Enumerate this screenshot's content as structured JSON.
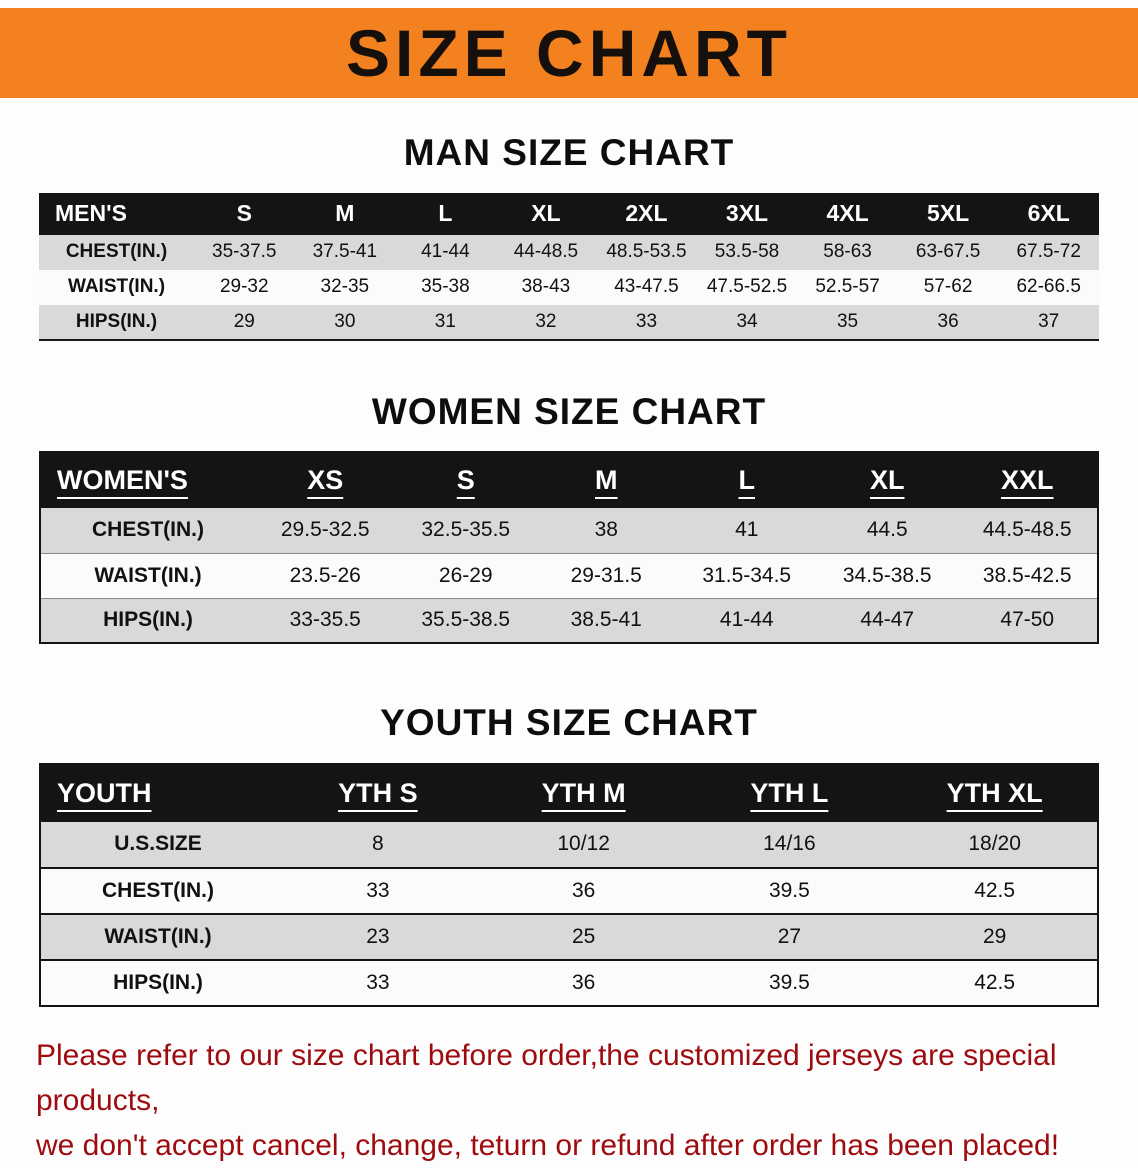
{
  "banner": {
    "title": "SIZE CHART"
  },
  "men": {
    "heading": "MAN SIZE CHART",
    "columns": [
      "MEN'S",
      "S",
      "M",
      "L",
      "XL",
      "2XL",
      "3XL",
      "4XL",
      "5XL",
      "6XL"
    ],
    "rows": [
      {
        "label": "CHEST(IN.)",
        "values": [
          "35-37.5",
          "37.5-41",
          "41-44",
          "44-48.5",
          "48.5-53.5",
          "53.5-58",
          "58-63",
          "63-67.5",
          "67.5-72"
        ]
      },
      {
        "label": "WAIST(IN.)",
        "values": [
          "29-32",
          "32-35",
          "35-38",
          "38-43",
          "43-47.5",
          "47.5-52.5",
          "52.5-57",
          "57-62",
          "62-66.5"
        ]
      },
      {
        "label": "HIPS(IN.)",
        "values": [
          "29",
          "30",
          "31",
          "32",
          "33",
          "34",
          "35",
          "36",
          "37"
        ]
      }
    ]
  },
  "women": {
    "heading": "WOMEN SIZE CHART",
    "columns": [
      "WOMEN'S",
      "XS",
      "S",
      "M",
      "L",
      "XL",
      "XXL"
    ],
    "rows": [
      {
        "label": "CHEST(IN.)",
        "values": [
          "29.5-32.5",
          "32.5-35.5",
          "38",
          "41",
          "44.5",
          "44.5-48.5"
        ]
      },
      {
        "label": "WAIST(IN.)",
        "values": [
          "23.5-26",
          "26-29",
          "29-31.5",
          "31.5-34.5",
          "34.5-38.5",
          "38.5-42.5"
        ]
      },
      {
        "label": "HIPS(IN.)",
        "values": [
          "33-35.5",
          "35.5-38.5",
          "38.5-41",
          "41-44",
          "44-47",
          "47-50"
        ]
      }
    ]
  },
  "youth": {
    "heading": "YOUTH SIZE CHART",
    "columns": [
      "YOUTH",
      "YTH S",
      "YTH M",
      "YTH L",
      "YTH XL"
    ],
    "rows": [
      {
        "label": "U.S.SIZE",
        "values": [
          "8",
          "10/12",
          "14/16",
          "18/20"
        ]
      },
      {
        "label": "CHEST(IN.)",
        "values": [
          "33",
          "36",
          "39.5",
          "42.5"
        ]
      },
      {
        "label": "WAIST(IN.)",
        "values": [
          "23",
          "25",
          "27",
          "29"
        ]
      },
      {
        "label": "HIPS(IN.)",
        "values": [
          "33",
          "36",
          "39.5",
          "42.5"
        ]
      }
    ]
  },
  "footer": {
    "line1": "Please refer to our size chart before order,the customized jerseys are special products,",
    "line2": "we don't accept cancel, change, teturn or refund after order has been placed!"
  },
  "colors": {
    "banner_bg": "#F48120",
    "table_header_bg": "#141414",
    "row_gray": "#D9D9D9",
    "notice_red": "#9E0B0F"
  }
}
